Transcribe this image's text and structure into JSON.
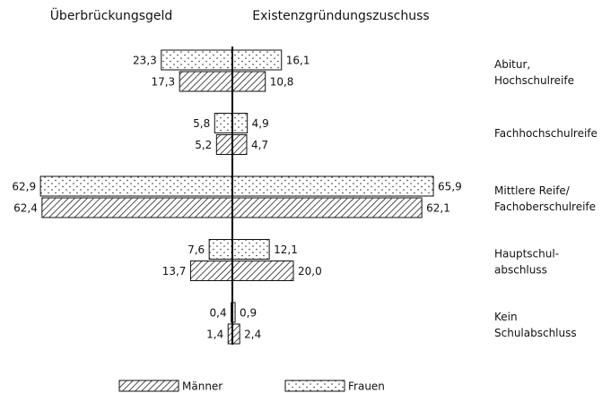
{
  "chart_data": {
    "type": "butterfly",
    "left_title": "Überbrückungsgeld",
    "right_title": "Existenzgründungszuschuss",
    "categories": [
      "Abitur,\nHochschulreife",
      "Fachhochschulreife",
      "Mittlere Reife/\nFachoberschulreife",
      "Hauptschul-\nabschluss",
      "Kein\nSchulabschluss"
    ],
    "series": [
      {
        "name": "Männer",
        "pattern": "hatch",
        "left_values": [
          17.3,
          5.2,
          62.4,
          13.7,
          1.4
        ],
        "left_value_labels": [
          "17,3",
          "5,2",
          "62,4",
          "13,7",
          "1,4"
        ],
        "right_values": [
          10.8,
          4.7,
          62.1,
          20.0,
          2.4
        ],
        "right_value_labels": [
          "10,8",
          "4,7",
          "62,1",
          "20,0",
          "2,4"
        ]
      },
      {
        "name": "Frauen",
        "pattern": "dots",
        "left_values": [
          23.3,
          5.8,
          62.9,
          7.6,
          0.4
        ],
        "left_value_labels": [
          "23,3",
          "5,8",
          "62,9",
          "7,6",
          "0,4"
        ],
        "right_values": [
          16.1,
          4.9,
          65.9,
          12.1,
          0.9
        ],
        "right_value_labels": [
          "16,1",
          "4,9",
          "65,9",
          "12,1",
          "0,9"
        ]
      }
    ]
  }
}
